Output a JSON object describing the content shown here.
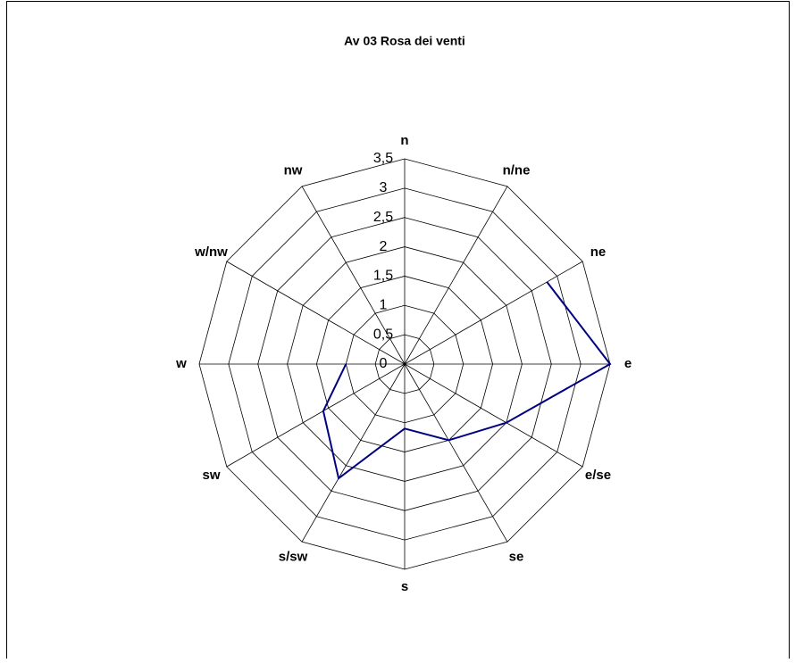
{
  "chart_data": {
    "type": "radar",
    "title": "Av 03 Rosa dei venti",
    "categories": [
      "n",
      "n/ne",
      "ne",
      "e",
      "e/se",
      "se",
      "s",
      "s/sw",
      "sw",
      "w",
      "w/nw",
      "nw"
    ],
    "series": [
      {
        "name": "Av 03",
        "color": "#000080",
        "values": [
          null,
          null,
          2.8,
          3.5,
          2.0,
          1.5,
          1.1,
          2.25,
          1.6,
          1.0,
          null,
          null
        ]
      }
    ],
    "ylim": [
      0,
      3.5
    ],
    "yticks": [
      0,
      {
        "value": 0.5,
        "label": "0,5"
      },
      1,
      {
        "value": 1.5,
        "label": "1,5"
      },
      2,
      {
        "value": 2.5,
        "label": "2,5"
      },
      3,
      {
        "value": 3.5,
        "label": "3,5"
      }
    ],
    "grid": true
  }
}
